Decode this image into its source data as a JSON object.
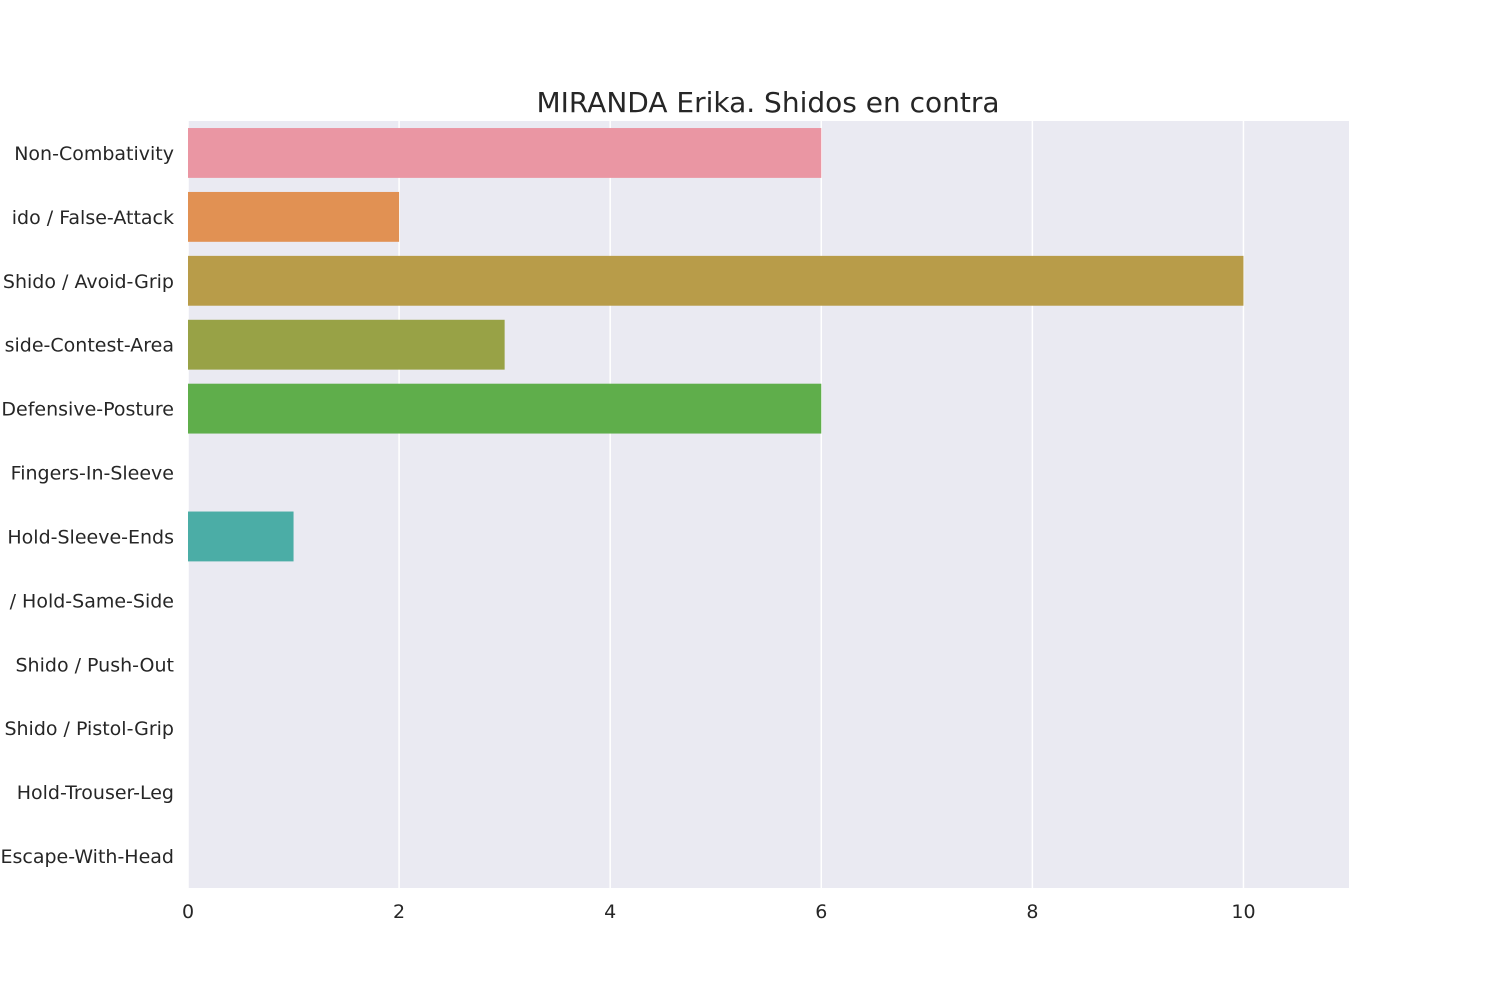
{
  "chart_data": {
    "type": "bar",
    "orientation": "horizontal",
    "title": "MIRANDA Erika. Shidos en contra",
    "xlabel": "",
    "ylabel": "",
    "xlim": [
      0,
      11
    ],
    "xticks": [
      0,
      2,
      4,
      6,
      8,
      10
    ],
    "grid": true,
    "background": "#eaeaf2",
    "grid_color": "#ffffff",
    "categories": [
      "Non-Combativity",
      "ido / False-Attack",
      "Shido / Avoid-Grip",
      "side-Contest-Area",
      "Defensive-Posture",
      "Fingers-In-Sleeve",
      "Hold-Sleeve-Ends",
      "/ Hold-Same-Side",
      "Shido / Push-Out",
      "Shido / Pistol-Grip",
      "Hold-Trouser-Leg",
      "Escape-With-Head"
    ],
    "values": [
      6,
      2,
      10,
      3,
      6,
      0,
      1,
      0,
      0,
      0,
      0,
      0
    ],
    "colors": [
      "#ea96a3",
      "#e19153",
      "#b89c49",
      "#98a246",
      "#5fae4b",
      "#51ae80",
      "#4bada6",
      "#4faec5",
      "#77a9e1",
      "#b59deb",
      "#e38ae9",
      "#ed90c8"
    ]
  }
}
